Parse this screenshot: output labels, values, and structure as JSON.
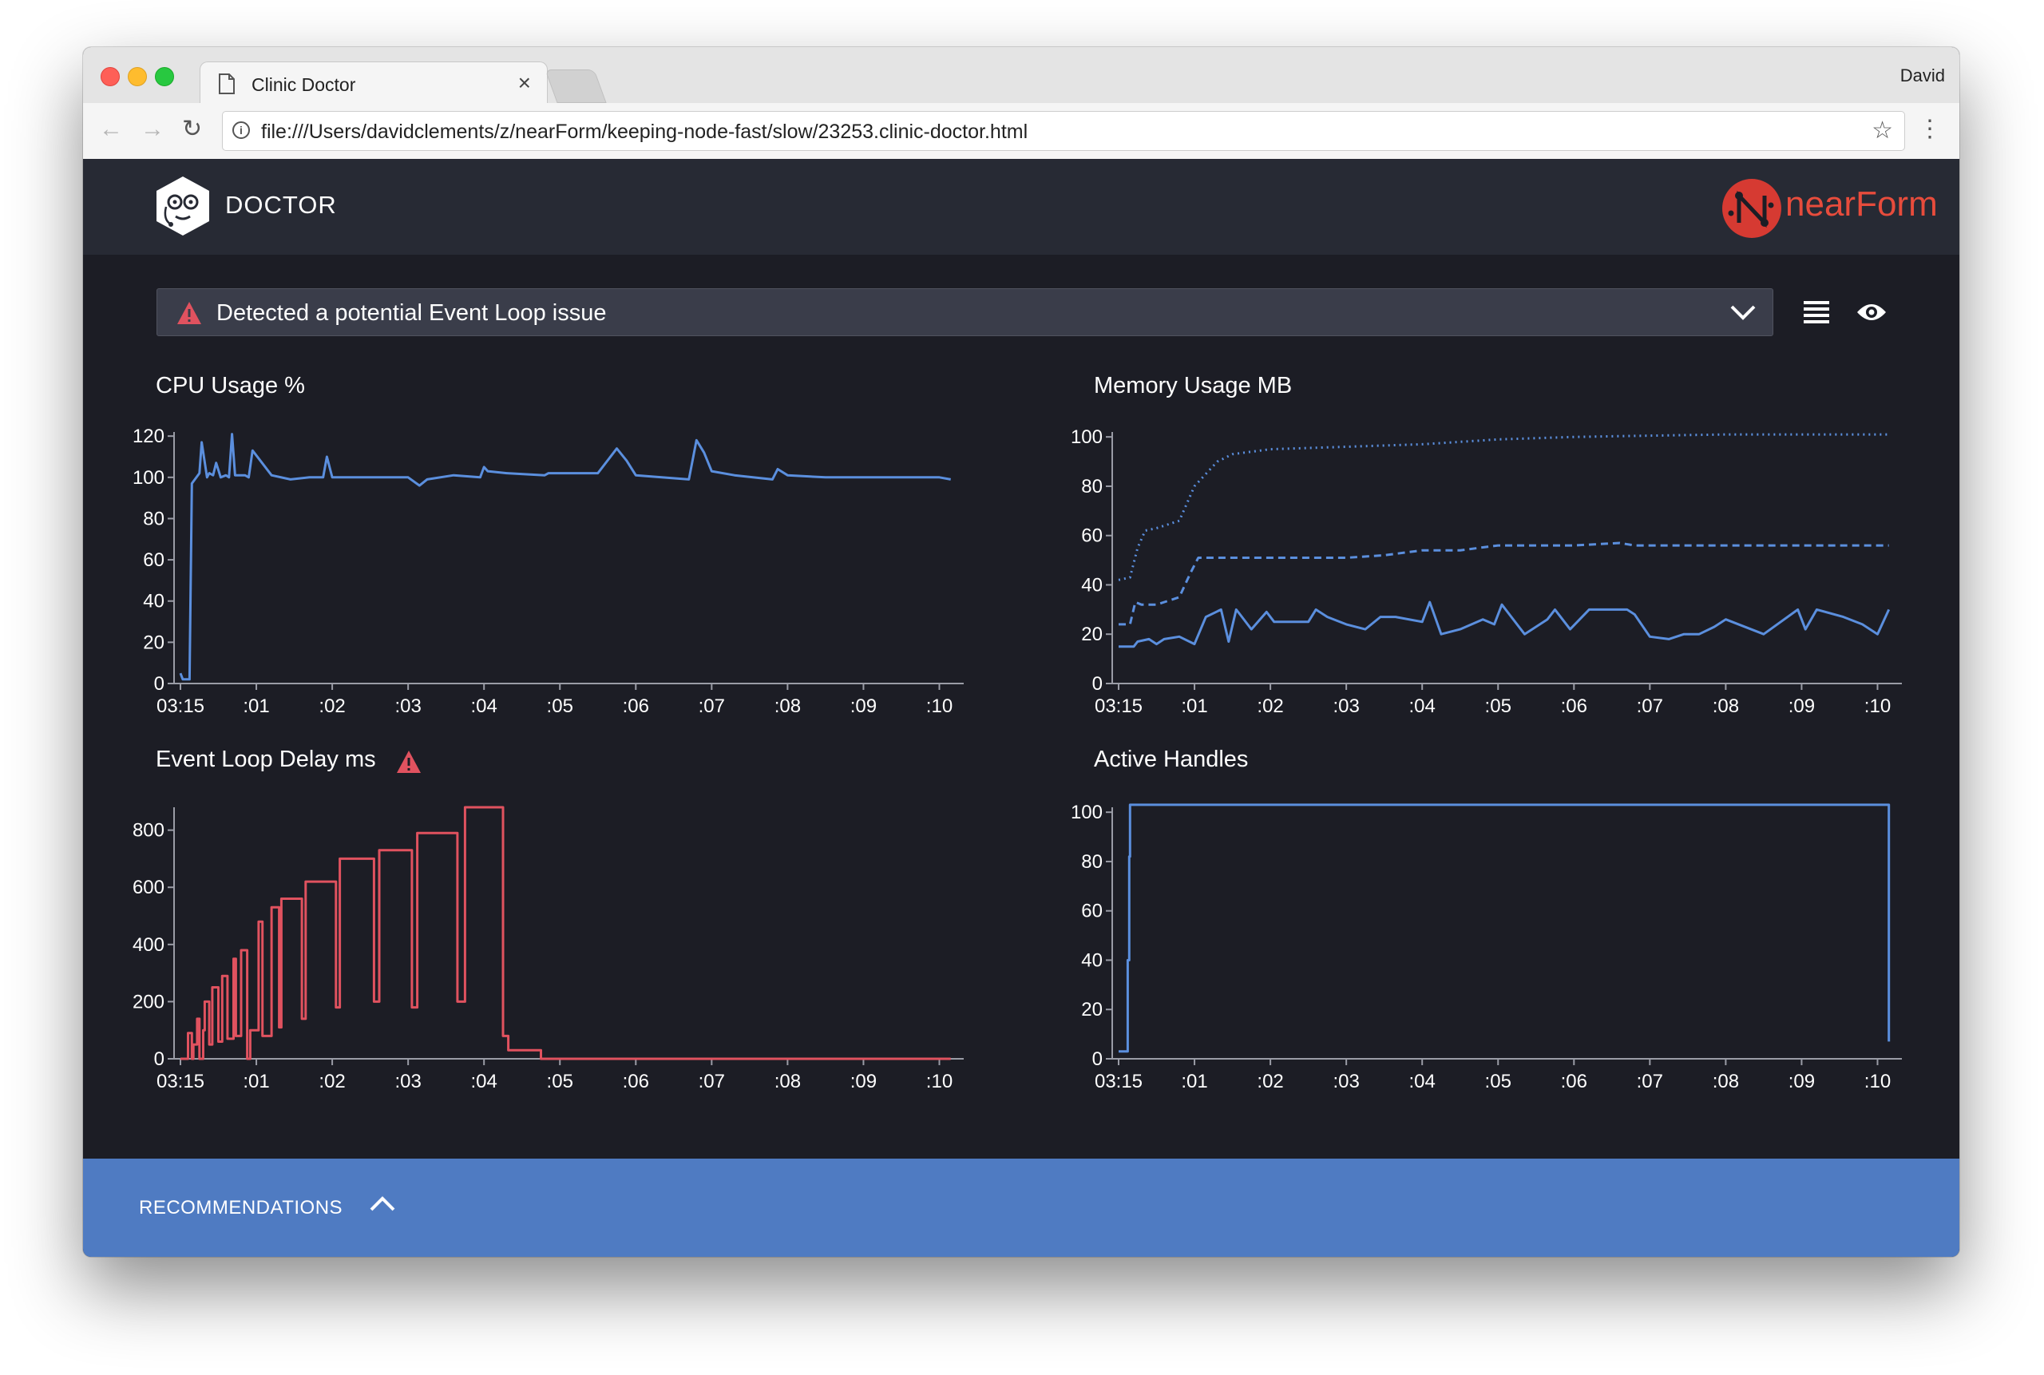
{
  "browser": {
    "tab_title": "Clinic Doctor",
    "profile_name": "David",
    "url": "file:///Users/davidclements/z/nearForm/keeping-node-fast/slow/23253.clinic-doctor.html"
  },
  "header": {
    "app_name": "DOCTOR",
    "brand_text": "nearForm"
  },
  "alert": {
    "text": "Detected a potential Event Loop issue"
  },
  "colors": {
    "series_blue": "#5b8fde",
    "series_red": "#e0525f",
    "background": "#1c1d25",
    "header_bg": "#272a34",
    "recommendations_bg": "#4f7bc2"
  },
  "charts": {
    "cpu": {
      "title": "CPU Usage %"
    },
    "memory": {
      "title": "Memory Usage MB"
    },
    "event_loop": {
      "title": "Event Loop Delay ms"
    },
    "handles": {
      "title": "Active Handles"
    }
  },
  "recommendations": {
    "label": "RECOMMENDATIONS"
  },
  "chart_data": [
    {
      "id": "cpu",
      "type": "line",
      "title": "CPU Usage %",
      "x_ticks": [
        "03:15",
        ":01",
        ":02",
        ":03",
        ":04",
        ":05",
        ":06",
        ":07",
        ":08",
        ":09",
        ":10"
      ],
      "y_ticks": [
        0,
        20,
        40,
        60,
        80,
        100,
        120
      ],
      "xlim": [
        0,
        10.3
      ],
      "ylim": [
        0,
        122
      ],
      "series": [
        {
          "x": [
            0,
            0.03,
            0.05,
            0.12,
            0.15,
            0.25,
            0.28,
            0.35,
            0.38,
            0.43,
            0.47,
            0.53,
            0.6,
            0.64,
            0.68,
            0.72,
            0.85,
            0.9,
            0.95,
            1.2,
            1.45,
            1.7,
            1.88,
            1.93,
            2.0,
            2.35,
            2.65,
            3.0,
            3.15,
            3.25,
            3.6,
            3.95,
            4.0,
            4.05,
            4.3,
            4.8,
            4.85,
            5.5,
            5.75,
            5.88,
            6.0,
            6.7,
            6.8,
            6.9,
            7.0,
            7.3,
            7.8,
            7.87,
            8.0,
            8.5,
            9.0,
            9.5,
            10.0,
            10.15
          ],
          "y": [
            5,
            2,
            2,
            2,
            97,
            102,
            117,
            100,
            102,
            101,
            107,
            100,
            101,
            100,
            121,
            101,
            101,
            100,
            113,
            101,
            99,
            100,
            100,
            110,
            100,
            100,
            100,
            100,
            96,
            99,
            101,
            100,
            105,
            103,
            102,
            101,
            102,
            102,
            114,
            108,
            101,
            99,
            118,
            112,
            103,
            101,
            99,
            104,
            101,
            100,
            100,
            100,
            100,
            99
          ]
        }
      ]
    },
    {
      "id": "memory",
      "type": "line",
      "title": "Memory Usage MB",
      "x_ticks": [
        "03:15",
        ":01",
        ":02",
        ":03",
        ":04",
        ":05",
        ":06",
        ":07",
        ":08",
        ":09",
        ":10"
      ],
      "y_ticks": [
        0,
        20,
        40,
        60,
        80,
        100
      ],
      "xlim": [
        0,
        10.3
      ],
      "ylim": [
        0,
        102
      ],
      "series": [
        {
          "style": "dotted",
          "x": [
            0,
            0.15,
            0.25,
            0.35,
            0.5,
            0.8,
            1.0,
            1.3,
            1.5,
            2.0,
            3.0,
            4.0,
            5.0,
            6.0,
            7.0,
            8.0,
            9.0,
            10.15
          ],
          "y": [
            42,
            43,
            55,
            62,
            63,
            66,
            80,
            90,
            93,
            95,
            96,
            97,
            99,
            100,
            100.5,
            101,
            101,
            101
          ]
        },
        {
          "style": "dashed",
          "x": [
            0,
            0.15,
            0.22,
            0.3,
            0.5,
            0.8,
            0.95,
            1.05,
            2.0,
            3.0,
            3.5,
            4.0,
            4.5,
            5.0,
            6.0,
            6.6,
            6.8,
            7.5,
            8.5,
            10.15
          ],
          "y": [
            24,
            24,
            33,
            32,
            32,
            35,
            45,
            51,
            51,
            51,
            52,
            54,
            54,
            56,
            56,
            57,
            56,
            56,
            56,
            56
          ]
        },
        {
          "style": "solid",
          "x": [
            0,
            0.1,
            0.2,
            0.25,
            0.4,
            0.5,
            0.6,
            0.8,
            1.0,
            1.15,
            1.35,
            1.45,
            1.55,
            1.6,
            1.75,
            1.95,
            2.05,
            2.5,
            2.6,
            2.75,
            3.0,
            3.25,
            3.45,
            3.65,
            4.0,
            4.1,
            4.25,
            4.5,
            4.8,
            4.95,
            5.05,
            5.35,
            5.65,
            5.75,
            5.95,
            6.2,
            6.7,
            6.8,
            7.0,
            7.25,
            7.45,
            7.65,
            7.85,
            8.0,
            8.5,
            8.95,
            9.05,
            9.2,
            9.55,
            9.8,
            10.0,
            10.15
          ],
          "y": [
            15,
            15,
            15,
            17,
            18,
            16,
            18,
            19,
            16,
            27,
            30,
            17,
            30,
            28,
            22,
            29,
            25,
            25,
            30,
            27,
            24,
            22,
            27,
            27,
            25,
            33,
            20,
            22,
            26,
            24,
            32,
            20,
            26,
            30,
            22,
            30,
            30,
            28,
            19,
            18,
            20,
            20,
            23,
            26,
            20,
            30,
            22,
            30,
            27,
            24,
            20,
            30
          ]
        }
      ]
    },
    {
      "id": "event_loop",
      "type": "line",
      "title": "Event Loop Delay ms",
      "x_ticks": [
        "03:15",
        ":01",
        ":02",
        ":03",
        ":04",
        ":05",
        ":06",
        ":07",
        ":08",
        ":09",
        ":10"
      ],
      "y_ticks": [
        0,
        200,
        400,
        600,
        800
      ],
      "xlim": [
        0,
        10.3
      ],
      "ylim": [
        0,
        880
      ],
      "series": [
        {
          "x": [
            0,
            0.05,
            0.1,
            0.1,
            0.15,
            0.15,
            0.17,
            0.17,
            0.22,
            0.22,
            0.25,
            0.25,
            0.3,
            0.3,
            0.32,
            0.32,
            0.38,
            0.38,
            0.42,
            0.42,
            0.5,
            0.5,
            0.55,
            0.55,
            0.62,
            0.62,
            0.7,
            0.7,
            0.73,
            0.73,
            0.8,
            0.8,
            0.88,
            0.88,
            0.92,
            0.92,
            1.03,
            1.03,
            1.08,
            1.08,
            1.2,
            1.2,
            1.3,
            1.3,
            1.33,
            1.33,
            1.6,
            1.6,
            1.65,
            1.65,
            2.05,
            2.05,
            2.1,
            2.1,
            2.55,
            2.55,
            2.62,
            2.62,
            3.05,
            3.05,
            3.12,
            3.12,
            3.65,
            3.65,
            3.75,
            3.75,
            4.25,
            4.25,
            4.32,
            4.32,
            4.75,
            4.75,
            4.82,
            4.82,
            5.3,
            5.3,
            5.38,
            5.38,
            5.9,
            5.9,
            5.98,
            5.98,
            6.62,
            6.62,
            6.75,
            6.75,
            7.38,
            7.38,
            7.48,
            7.48,
            8.05,
            8.05,
            8.12,
            8.12,
            8.75,
            8.75,
            8.85,
            8.85,
            9.25,
            9.25,
            9.35,
            9.35,
            10.1,
            10.1,
            10.15,
            10.15
          ],
          "y": [
            0,
            0,
            0,
            90,
            90,
            0,
            0,
            50,
            50,
            140,
            140,
            0,
            0,
            100,
            100,
            200,
            200,
            50,
            50,
            250,
            250,
            60,
            60,
            290,
            290,
            70,
            70,
            350,
            350,
            80,
            80,
            380,
            380,
            0,
            0,
            100,
            100,
            480,
            480,
            80,
            80,
            530,
            530,
            110,
            110,
            560,
            560,
            140,
            140,
            620,
            620,
            180,
            180,
            700,
            700,
            200,
            200,
            730,
            730,
            180,
            180,
            790,
            790,
            200,
            200,
            880,
            880,
            80,
            80,
            30,
            30,
            0,
            0,
            0,
            0,
            0,
            0,
            0,
            0,
            0,
            0,
            0,
            0,
            0,
            0,
            0,
            0,
            0,
            0,
            0,
            0,
            0,
            0,
            0,
            0,
            0,
            0,
            0,
            0,
            0,
            0,
            0,
            0,
            0,
            0,
            0
          ]
        }
      ]
    },
    {
      "id": "handles",
      "type": "line",
      "title": "Active Handles",
      "x_ticks": [
        "03:15",
        ":01",
        ":02",
        ":03",
        ":04",
        ":05",
        ":06",
        ":07",
        ":08",
        ":09",
        ":10"
      ],
      "y_ticks": [
        0,
        20,
        40,
        60,
        80,
        100
      ],
      "xlim": [
        0,
        10.3
      ],
      "ylim": [
        0,
        102
      ],
      "series": [
        {
          "x": [
            0,
            0.1,
            0.12,
            0.12,
            0.14,
            0.14,
            0.15,
            0.15,
            10.15,
            10.15
          ],
          "y": [
            3,
            3,
            3,
            40,
            40,
            82,
            82,
            103,
            103,
            7
          ]
        }
      ]
    }
  ]
}
